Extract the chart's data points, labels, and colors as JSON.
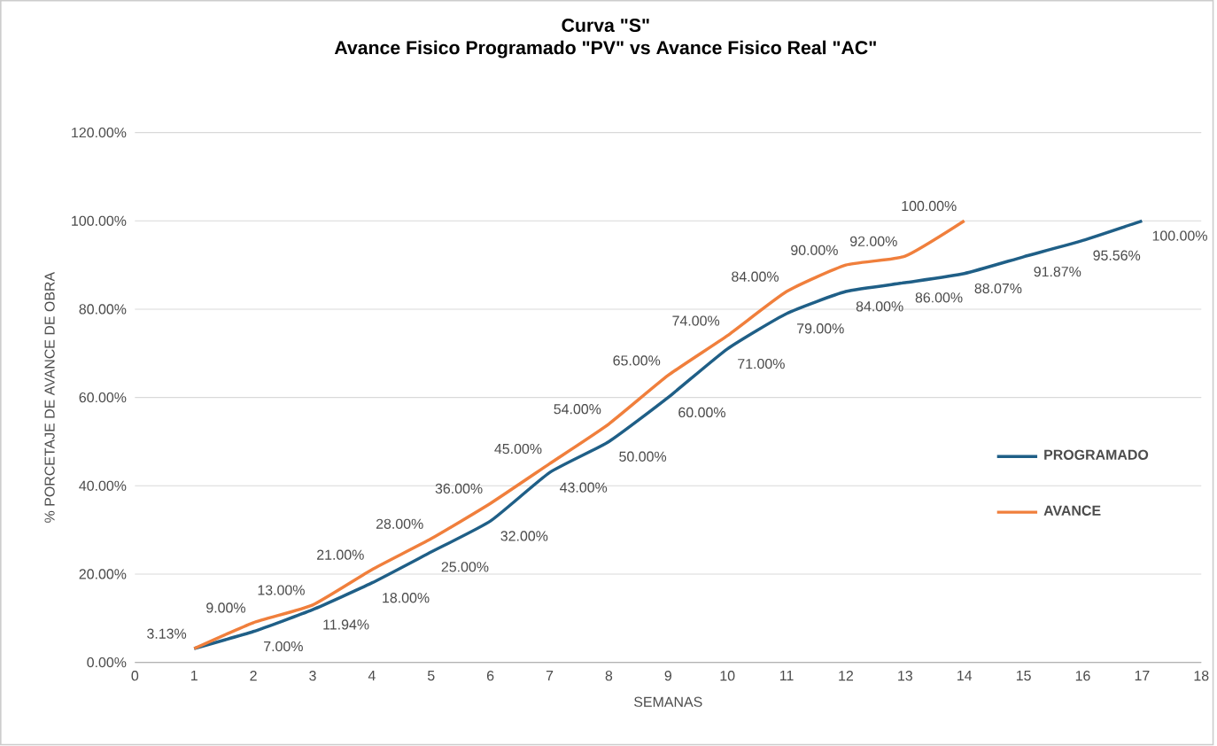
{
  "chart_data": {
    "type": "line",
    "title": "Curva \"S\"",
    "subtitle": "Avance Fisico Programado \"PV\" vs Avance Fisico Real \"AC\"",
    "xlabel": "SEMANAS",
    "ylabel": "% PORCETAJE DE AVANCE DE OBRA",
    "x": [
      1,
      2,
      3,
      4,
      5,
      6,
      7,
      8,
      9,
      10,
      11,
      12,
      13,
      14,
      15,
      16,
      17
    ],
    "series": [
      {
        "name": "PROGRAMADO",
        "color": "#1f5f87",
        "values": [
          3.13,
          7.0,
          11.94,
          18.0,
          25.0,
          32.0,
          43.0,
          50.0,
          60.0,
          71.0,
          79.0,
          84.0,
          86.0,
          88.07,
          91.87,
          95.56,
          100.0
        ],
        "value_labels": [
          null,
          "7.00%",
          "11.94%",
          "18.00%",
          "25.00%",
          "32.00%",
          "43.00%",
          "50.00%",
          "60.00%",
          "71.00%",
          "79.00%",
          "84.00%",
          "86.00%",
          "88.07%",
          "91.87%",
          "95.56%",
          "100.00%"
        ]
      },
      {
        "name": "AVANCE",
        "color": "#f07f3c",
        "values": [
          3.13,
          9.0,
          13.0,
          21.0,
          28.0,
          36.0,
          45.0,
          54.0,
          65.0,
          74.0,
          84.0,
          90.0,
          92.0,
          100.0,
          null,
          null,
          null
        ],
        "value_labels": [
          "3.13%",
          "9.00%",
          "13.00%",
          "21.00%",
          "28.00%",
          "36.00%",
          "45.00%",
          "54.00%",
          "65.00%",
          "74.00%",
          "84.00%",
          "90.00%",
          "92.00%",
          "100.00%",
          null,
          null,
          null
        ]
      }
    ],
    "xlim": [
      0,
      18
    ],
    "xticks": [
      0,
      1,
      2,
      3,
      4,
      5,
      6,
      7,
      8,
      9,
      10,
      11,
      12,
      13,
      14,
      15,
      16,
      17,
      18
    ],
    "ylim": [
      0,
      120
    ],
    "yticks": [
      {
        "value": 0,
        "label": "0.00%"
      },
      {
        "value": 20,
        "label": "20.00%"
      },
      {
        "value": 40,
        "label": "40.00%"
      },
      {
        "value": 60,
        "label": "60.00%"
      },
      {
        "value": 80,
        "label": "80.00%"
      },
      {
        "value": 100,
        "label": "100.00%"
      },
      {
        "value": 120,
        "label": "120.00%"
      }
    ],
    "grid": "y",
    "legend": "right",
    "marker": "none",
    "line_style": "solid"
  }
}
